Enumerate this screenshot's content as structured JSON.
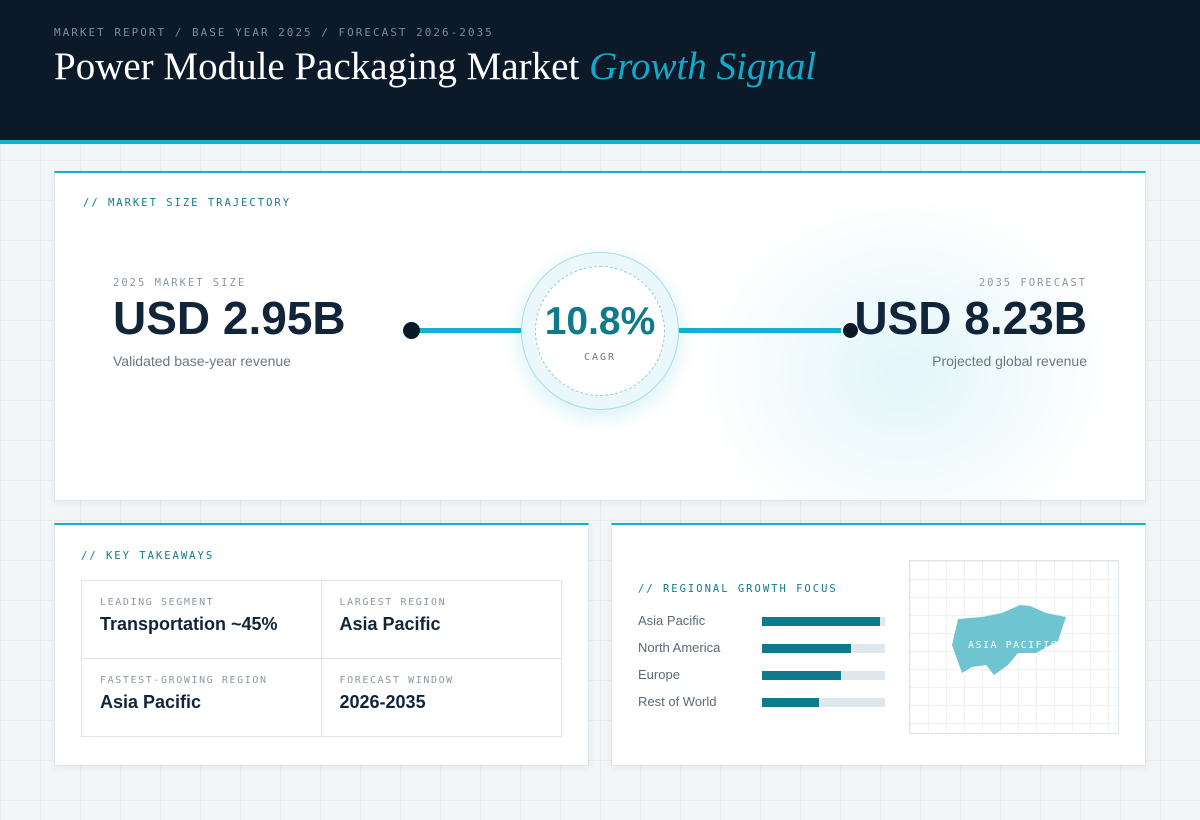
{
  "header": {
    "meta": "MARKET REPORT / BASE YEAR 2025 / FORECAST 2026-2035",
    "title_main": "Power Module Packaging Market",
    "title_accent": "Growth Signal"
  },
  "trajectory": {
    "section_label": "// MARKET SIZE TRAJECTORY",
    "start": {
      "kicker": "2025 MARKET SIZE",
      "value": "USD 2.95B",
      "caption": "Validated base-year revenue"
    },
    "end": {
      "kicker": "2035 FORECAST",
      "value": "USD 8.23B",
      "caption": "Projected global revenue"
    },
    "cagr": {
      "value": "10.8%",
      "label": "CAGR"
    }
  },
  "takeaways": {
    "section_label": "// KEY TAKEAWAYS",
    "items": [
      {
        "label": "LEADING SEGMENT",
        "value": "Transportation ~45%"
      },
      {
        "label": "LARGEST REGION",
        "value": "Asia Pacific"
      },
      {
        "label": "FASTEST-GROWING REGION",
        "value": "Asia Pacific"
      },
      {
        "label": "FORECAST WINDOW",
        "value": "2026-2035"
      }
    ]
  },
  "regional": {
    "section_label": "// REGIONAL GROWTH FOCUS",
    "bars": [
      {
        "name": "Asia Pacific",
        "share": 0.96
      },
      {
        "name": "North America",
        "share": 0.72
      },
      {
        "name": "Europe",
        "share": 0.64
      },
      {
        "name": "Rest of World",
        "share": 0.46
      }
    ],
    "map_label": "ASIA PACIFIC"
  },
  "colors": {
    "accent": "#12b2cf",
    "accent_dark": "#0f7a8c",
    "navy": "#0b1928",
    "map_fill": "#6fc4d2"
  }
}
